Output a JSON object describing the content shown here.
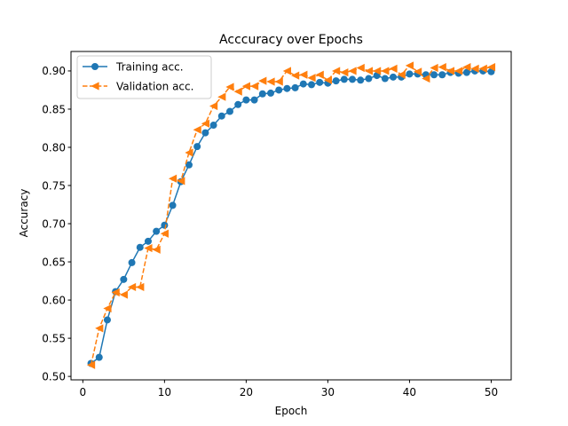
{
  "chart_data": {
    "type": "line",
    "title": "Acccuracy over Epochs",
    "xlabel": "Epoch",
    "ylabel": "Accuracy",
    "xlim": [
      -1.45,
      52.45
    ],
    "ylim": [
      0.4955,
      0.9255
    ],
    "xticks": [
      0,
      10,
      20,
      30,
      40,
      50
    ],
    "xtick_labels": [
      "0",
      "10",
      "20",
      "30",
      "40",
      "50"
    ],
    "yticks": [
      0.5,
      0.55,
      0.6,
      0.65,
      0.7,
      0.75,
      0.8,
      0.85,
      0.9
    ],
    "ytick_labels": [
      "0.50",
      "0.55",
      "0.60",
      "0.65",
      "0.70",
      "0.75",
      "0.80",
      "0.85",
      "0.90"
    ],
    "grid": false,
    "legend_position": "upper-left",
    "x": [
      1,
      2,
      3,
      4,
      5,
      6,
      7,
      8,
      9,
      10,
      11,
      12,
      13,
      14,
      15,
      16,
      17,
      18,
      19,
      20,
      21,
      22,
      23,
      24,
      25,
      26,
      27,
      28,
      29,
      30,
      31,
      32,
      33,
      34,
      35,
      36,
      37,
      38,
      39,
      40,
      41,
      42,
      43,
      44,
      45,
      46,
      47,
      48,
      49,
      50
    ],
    "series": [
      {
        "name": "Training acc.",
        "color": "#1f77b4",
        "marker": "circle",
        "linestyle": "solid",
        "values": [
          0.517,
          0.525,
          0.574,
          0.611,
          0.627,
          0.649,
          0.669,
          0.677,
          0.69,
          0.698,
          0.724,
          0.755,
          0.777,
          0.801,
          0.819,
          0.829,
          0.841,
          0.847,
          0.856,
          0.862,
          0.862,
          0.87,
          0.871,
          0.875,
          0.877,
          0.878,
          0.883,
          0.882,
          0.885,
          0.884,
          0.887,
          0.889,
          0.889,
          0.888,
          0.89,
          0.894,
          0.89,
          0.892,
          0.892,
          0.896,
          0.896,
          0.895,
          0.895,
          0.895,
          0.898,
          0.897,
          0.898,
          0.9,
          0.9,
          0.899
        ]
      },
      {
        "name": "Validation acc.",
        "color": "#ff7f0e",
        "marker": "triangle-left",
        "linestyle": "dashed",
        "values": [
          0.515,
          0.563,
          0.589,
          0.61,
          0.607,
          0.617,
          0.617,
          0.668,
          0.666,
          0.687,
          0.759,
          0.756,
          0.793,
          0.823,
          0.831,
          0.854,
          0.866,
          0.879,
          0.873,
          0.88,
          0.88,
          0.887,
          0.886,
          0.886,
          0.9,
          0.894,
          0.895,
          0.891,
          0.895,
          0.888,
          0.9,
          0.898,
          0.9,
          0.904,
          0.9,
          0.9,
          0.9,
          0.903,
          0.895,
          0.907,
          0.899,
          0.89,
          0.904,
          0.905,
          0.9,
          0.9,
          0.905,
          0.903,
          0.903,
          0.905
        ]
      }
    ]
  }
}
